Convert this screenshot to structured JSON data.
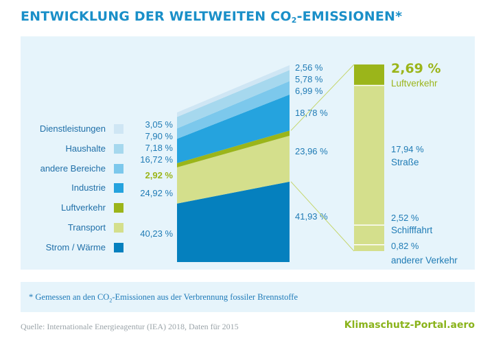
{
  "header": {
    "title_pre": "ENTWICKLUNG DER WELTWEITEN CO",
    "title_sub": "2",
    "title_post": "-EMISSIONEN*"
  },
  "footnote": {
    "pre": "* Gemessen an den CO",
    "sub": "2",
    "post": "-Emissionen aus der Verbrennung fossiler Brennstoffe"
  },
  "source": "Quelle: Internationale Energieagentur (IEA) 2018, Daten für 2015",
  "brand": "Klimaschutz-Portal.aero",
  "legend": [
    {
      "label": "Dienstleistungen",
      "color": "#cfe6f4"
    },
    {
      "label": "Haushalte",
      "color": "#a6d8ee"
    },
    {
      "label": "andere Bereiche",
      "color": "#7cc8ec"
    },
    {
      "label": "Industrie",
      "color": "#25a3de"
    },
    {
      "label": "Luftverkehr",
      "color": "#9bb51a"
    },
    {
      "label": "Transport",
      "color": "#d4df8c"
    },
    {
      "label": "Strom / Wärme",
      "color": "#0580be"
    }
  ],
  "chart_data": [
    {
      "type": "area",
      "x": [
        "left",
        "right"
      ],
      "series": [
        {
          "name": "Strom / Wärme",
          "values": [
            40.23,
            41.93
          ],
          "labels": [
            "40,23 %",
            "41,93 %"
          ],
          "color": "#0580be"
        },
        {
          "name": "Transport",
          "values": [
            24.92,
            23.96
          ],
          "labels": [
            "24,92 %",
            "23,96 %"
          ],
          "color": "#d4df8c"
        },
        {
          "name": "Luftverkehr",
          "values": [
            2.92,
            2.69
          ],
          "labels": [
            "2,92 %",
            ""
          ],
          "color": "#9bb51a",
          "highlight": true
        },
        {
          "name": "Industrie",
          "values": [
            16.72,
            18.78
          ],
          "labels": [
            "16,72 %",
            "18,78 %"
          ],
          "color": "#25a3de"
        },
        {
          "name": "andere Bereiche",
          "values": [
            7.18,
            6.99
          ],
          "labels": [
            "7,18 %",
            "6,99 %"
          ],
          "color": "#7cc8ec"
        },
        {
          "name": "Haushalte",
          "values": [
            7.9,
            5.78
          ],
          "labels": [
            "7,90 %",
            "5,78 %"
          ],
          "color": "#a6d8ee"
        },
        {
          "name": "Dienstleistungen",
          "values": [
            3.05,
            2.56
          ],
          "labels": [
            "3,05 %",
            "2,56 %"
          ],
          "color": "#cfe6f4"
        }
      ]
    },
    {
      "type": "bar",
      "stacked": true,
      "segments": [
        {
          "name": "anderer Verkehr",
          "value": 0.82,
          "label": "0,82 %",
          "color": "#d4df8c"
        },
        {
          "name": "Schifffahrt",
          "value": 2.52,
          "label": "2,52 %",
          "color": "#d4df8c"
        },
        {
          "name": "Straße",
          "value": 17.94,
          "label": "17,94 %",
          "color": "#d4df8c"
        },
        {
          "name": "Luftverkehr",
          "value": 2.69,
          "label": "2,69 %",
          "color": "#9bb51a",
          "highlight": true
        }
      ]
    }
  ]
}
